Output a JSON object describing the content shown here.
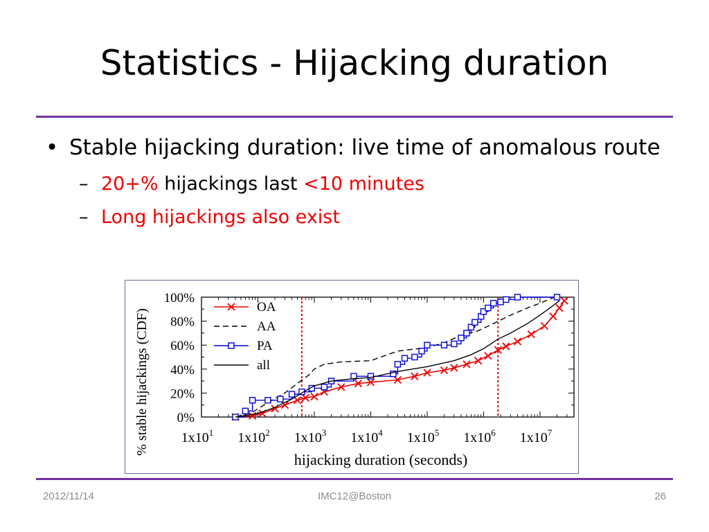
{
  "slide": {
    "title": "Statistics - Hijacking duration",
    "bullet": "Stable hijacking duration: live time of anomalous route",
    "sub1": {
      "red1": "20+%",
      "black": " hijackings last ",
      "red2": "<10 minutes"
    },
    "sub2": "Long hijackings also exist"
  },
  "footer": {
    "date": "2012/11/14",
    "venue": "IMC12@Boston",
    "page": "26"
  },
  "colors": {
    "accent": "#7030a0",
    "oa": "#ee0000",
    "pa": "#0000dd",
    "threshold": "#dd0000"
  },
  "chart_data": {
    "type": "line",
    "xlabel": "hijacking duration (seconds)",
    "ylabel": "% stable hijackings (CDF)",
    "xscale": "log",
    "xlim": [
      10,
      40000000
    ],
    "ylim": [
      0,
      100
    ],
    "yticks": [
      {
        "v": 0,
        "label": "0%"
      },
      {
        "v": 20,
        "label": "20%"
      },
      {
        "v": 40,
        "label": "40%"
      },
      {
        "v": 60,
        "label": "60%"
      },
      {
        "v": 80,
        "label": "80%"
      },
      {
        "v": 100,
        "label": "100%"
      }
    ],
    "xticks": [
      {
        "v": 10,
        "base": "1x10",
        "exp": "1"
      },
      {
        "v": 100,
        "base": "1x10",
        "exp": "2"
      },
      {
        "v": 1000,
        "base": "1x10",
        "exp": "3"
      },
      {
        "v": 10000,
        "base": "1x10",
        "exp": "4"
      },
      {
        "v": 100000,
        "base": "1x10",
        "exp": "5"
      },
      {
        "v": 1000000,
        "base": "1x10",
        "exp": "6"
      },
      {
        "v": 10000000,
        "base": "1x10",
        "exp": "7"
      }
    ],
    "vlines": [
      600,
      1800000
    ],
    "legend_position": "top-left",
    "series": [
      {
        "name": "OA",
        "style": "solid",
        "marker": "x",
        "color": "#ee0000",
        "points": [
          [
            40,
            0
          ],
          [
            80,
            1
          ],
          [
            120,
            3
          ],
          [
            200,
            7
          ],
          [
            300,
            10
          ],
          [
            500,
            14
          ],
          [
            700,
            16
          ],
          [
            1000,
            17
          ],
          [
            1500,
            21
          ],
          [
            3000,
            25
          ],
          [
            6000,
            28
          ],
          [
            10000,
            29
          ],
          [
            30000,
            31
          ],
          [
            60000,
            34
          ],
          [
            100000,
            37
          ],
          [
            200000,
            39
          ],
          [
            300000,
            41
          ],
          [
            500000,
            44
          ],
          [
            800000,
            47
          ],
          [
            1200000,
            51
          ],
          [
            1800000,
            56
          ],
          [
            2500000,
            59
          ],
          [
            4000000,
            63
          ],
          [
            7000000,
            69
          ],
          [
            12000000,
            76
          ],
          [
            17000000,
            84
          ],
          [
            22000000,
            91
          ],
          [
            27000000,
            97
          ]
        ]
      },
      {
        "name": "AA",
        "style": "dashed",
        "marker": "none",
        "color": "#000000",
        "points": [
          [
            40,
            0
          ],
          [
            80,
            4
          ],
          [
            150,
            12
          ],
          [
            300,
            20
          ],
          [
            500,
            28
          ],
          [
            800,
            35
          ],
          [
            1000,
            40
          ],
          [
            1500,
            44
          ],
          [
            3000,
            46
          ],
          [
            10000,
            47
          ],
          [
            30000,
            55
          ],
          [
            100000,
            58
          ],
          [
            200000,
            62
          ],
          [
            400000,
            68
          ],
          [
            800000,
            72
          ],
          [
            1500000,
            78
          ],
          [
            3000000,
            85
          ],
          [
            6000000,
            91
          ],
          [
            10000000,
            95
          ],
          [
            18000000,
            100
          ]
        ]
      },
      {
        "name": "PA",
        "style": "solid",
        "marker": "square",
        "color": "#0000dd",
        "points": [
          [
            40,
            0
          ],
          [
            60,
            5
          ],
          [
            80,
            14
          ],
          [
            150,
            14
          ],
          [
            250,
            15
          ],
          [
            400,
            19
          ],
          [
            600,
            21
          ],
          [
            900,
            24
          ],
          [
            1500,
            25
          ],
          [
            2000,
            30
          ],
          [
            5000,
            34
          ],
          [
            10000,
            34
          ],
          [
            25000,
            36
          ],
          [
            30000,
            44
          ],
          [
            40000,
            49
          ],
          [
            60000,
            50
          ],
          [
            80000,
            55
          ],
          [
            100000,
            60
          ],
          [
            200000,
            60
          ],
          [
            300000,
            61
          ],
          [
            400000,
            66
          ],
          [
            500000,
            70
          ],
          [
            600000,
            75
          ],
          [
            700000,
            79
          ],
          [
            900000,
            84
          ],
          [
            1000000,
            88
          ],
          [
            1200000,
            91
          ],
          [
            1500000,
            95
          ],
          [
            2000000,
            96
          ],
          [
            2500000,
            98
          ],
          [
            4000000,
            100
          ],
          [
            20000000,
            100
          ]
        ]
      },
      {
        "name": "all",
        "style": "solid",
        "marker": "none",
        "color": "#000000",
        "points": [
          [
            40,
            0
          ],
          [
            100,
            3
          ],
          [
            200,
            8
          ],
          [
            400,
            15
          ],
          [
            700,
            22
          ],
          [
            1000,
            26
          ],
          [
            2000,
            30
          ],
          [
            5000,
            32
          ],
          [
            10000,
            33
          ],
          [
            30000,
            38
          ],
          [
            100000,
            42
          ],
          [
            300000,
            47
          ],
          [
            600000,
            52
          ],
          [
            1000000,
            57
          ],
          [
            1800000,
            65
          ],
          [
            3000000,
            70
          ],
          [
            6000000,
            78
          ],
          [
            10000000,
            85
          ],
          [
            15000000,
            91
          ],
          [
            22000000,
            97
          ]
        ]
      }
    ]
  }
}
